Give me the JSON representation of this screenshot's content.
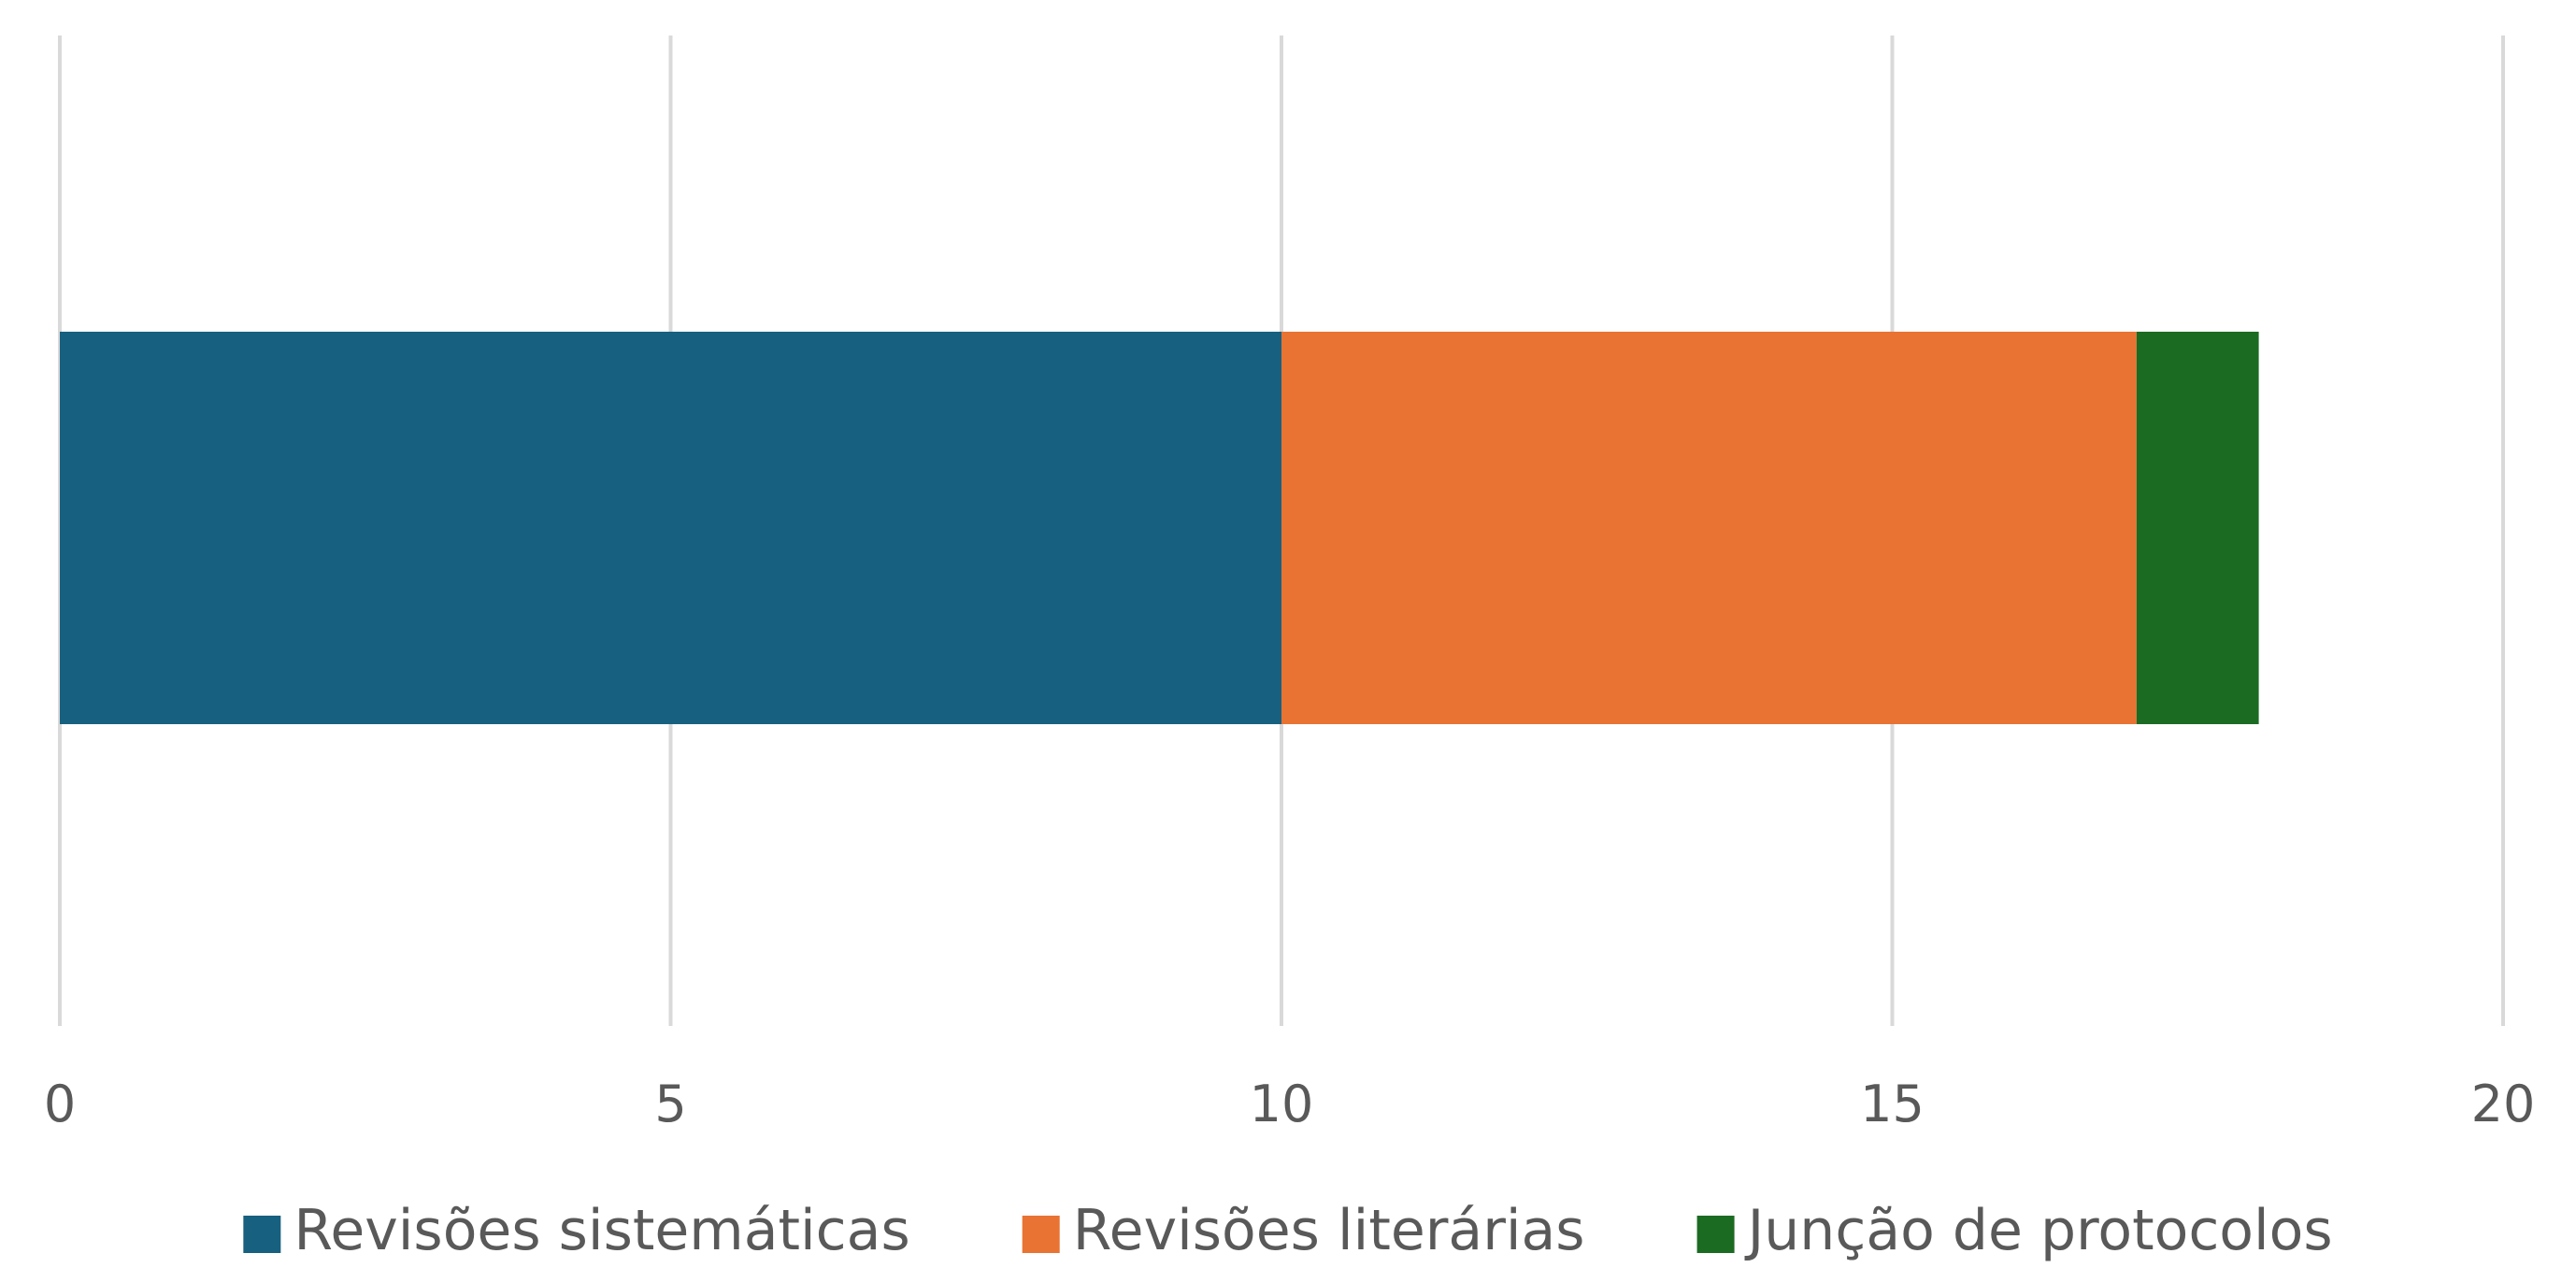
{
  "chart_data": {
    "type": "bar",
    "orientation": "horizontal",
    "stacked": true,
    "categories": [
      ""
    ],
    "series": [
      {
        "name": "Revisões sistemáticas",
        "values": [
          10
        ],
        "color": "#17607F"
      },
      {
        "name": "Revisões literárias",
        "values": [
          7
        ],
        "color": "#E87332"
      },
      {
        "name": "Junção de protocolos",
        "values": [
          1
        ],
        "color": "#1B6B23"
      }
    ],
    "x_ticks": [
      "0",
      "5",
      "10",
      "15",
      "20"
    ],
    "xlim": [
      0,
      20
    ],
    "grid": true,
    "legend_position": "bottom"
  }
}
